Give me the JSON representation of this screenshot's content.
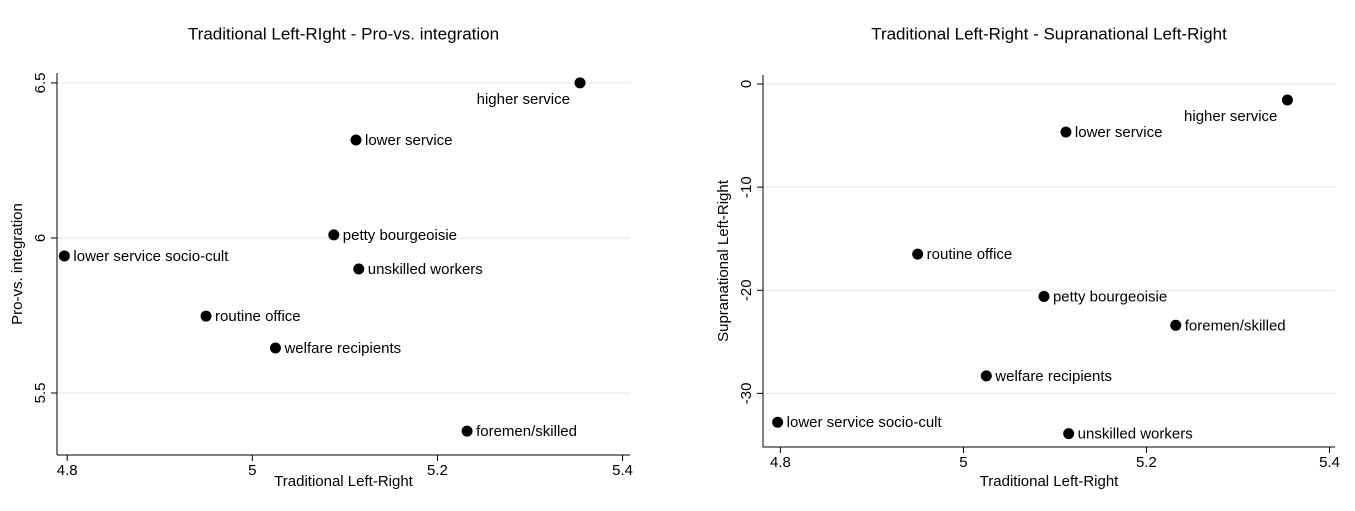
{
  "chart_data": [
    {
      "type": "scatter",
      "title": "Traditional Left-RIght - Pro-vs. integration",
      "x_label": "Traditional Left-Right",
      "y_label": "Pro-vs. integration",
      "series": [
        {
          "color": "#000000",
          "labels": [
            "higher service",
            "lower service",
            "petty bourgeoisie",
            "lower service socio-cult",
            "unskilled workers",
            "routine office",
            "welfare recipients",
            "foremen/skilled"
          ],
          "x": [
            5.354,
            5.112,
            5.088,
            4.797,
            5.115,
            4.95,
            5.025,
            5.232
          ],
          "values": [
            6.5,
            6.316,
            6.01,
            5.942,
            5.9,
            5.748,
            5.645,
            5.377
          ]
        }
      ],
      "xlim": [
        4.789,
        5.408
      ],
      "ylim": [
        5.3,
        6.532
      ],
      "xticks": [
        4.8,
        5,
        5.2,
        5.4
      ],
      "yticks": [
        5.5,
        6,
        6.5
      ],
      "grid": true
    },
    {
      "type": "scatter",
      "title": "Traditional Left-Right - Supranational Left-Right",
      "x_label": "Traditional Left-Right",
      "y_label": "Supranational Left-Right",
      "series": [
        {
          "color": "#000000",
          "labels": [
            "higher service",
            "lower service",
            "routine office",
            "petty bourgeoisie",
            "foremen/skilled",
            "welfare recipients",
            "lower service socio-cult",
            "unskilled workers"
          ],
          "x": [
            5.354,
            5.112,
            4.95,
            5.088,
            5.232,
            5.025,
            4.797,
            5.115
          ],
          "values": [
            -1.55,
            -4.66,
            -16.5,
            -20.6,
            -23.4,
            -28.3,
            -32.8,
            -33.9
          ]
        }
      ],
      "xlim": [
        4.781,
        5.406
      ],
      "ylim": [
        -35.2,
        0.87
      ],
      "xticks": [
        4.8,
        5,
        5.2,
        5.4
      ],
      "yticks": [
        -30,
        -20,
        -10,
        0
      ],
      "grid": true
    }
  ]
}
